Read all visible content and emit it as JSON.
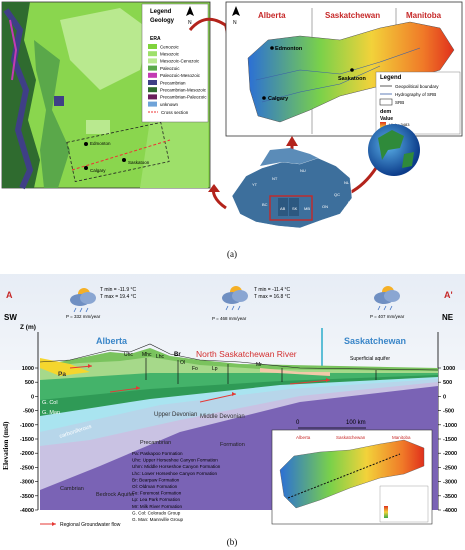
{
  "panel_a": {
    "label": "(a)",
    "geology_legend": {
      "title": "Legend",
      "subtitle": "Geology",
      "era_title": "ERA",
      "items": [
        {
          "label": "Cenozoic",
          "color": "#7fd33c"
        },
        {
          "label": "Mesozoic",
          "color": "#9ee06a"
        },
        {
          "label": "Mesozoic-Cenozoic",
          "color": "#b9e98f"
        },
        {
          "label": "Paleozoic",
          "color": "#5aa84a"
        },
        {
          "label": "Paleozoic-Mesozoic",
          "color": "#c33ab3"
        },
        {
          "label": "Precambrian",
          "color": "#3f3f86"
        },
        {
          "label": "Precambrian-Mesozoic",
          "color": "#2f6b2f"
        },
        {
          "label": "Precambrian-Paleozoic",
          "color": "#6a1f5c"
        },
        {
          "label": "unknown",
          "color": "#6fa3d8"
        }
      ],
      "cross_section_label": "Cross section",
      "cities": [
        "Edmonton",
        "Saskatoon",
        "Calgary"
      ]
    },
    "srb_map": {
      "provinces": [
        "Alberta",
        "Saskatchewan",
        "Manitoba"
      ],
      "cities": [
        "Edmonton",
        "Saskatoon",
        "Calgary"
      ],
      "legend_title": "Legend",
      "legend_items": [
        "Geopolitical boundary",
        "Hydrography of SRB",
        "SRB"
      ],
      "dem_label": "dem",
      "value_label": "Value",
      "high_label": "High : 3483",
      "low_label": "Low : 215"
    },
    "canada_map": {
      "labels": [
        "YT",
        "NT",
        "NU",
        "BC",
        "AB",
        "SK",
        "MB",
        "ON",
        "QC",
        "NL",
        "NB",
        "PE",
        "NS"
      ]
    }
  },
  "panel_b": {
    "label": "(b)",
    "end_left": "A",
    "end_right": "A'",
    "dir_left": "SW",
    "dir_right": "NE",
    "z_label": "Z (m)",
    "y_axis_label": "Elevation (msl)",
    "y_ticks": [
      "1000",
      "500",
      "0",
      "-500",
      "-1000",
      "-1500",
      "-2000",
      "-2500",
      "-3000",
      "-3500",
      "-4000"
    ],
    "right_ticks": [
      "1000",
      "500",
      "0",
      "-500",
      "-1000",
      "-1500",
      "-2000",
      "-2500",
      "-3000",
      "-3500",
      "-4000"
    ],
    "weather": [
      {
        "tmin": "T min = -11.9 °C",
        "tmax": "T max = 19.4 °C",
        "precip": "P = 332 mm/year"
      },
      {
        "tmin": "T min = -11.4 °C",
        "tmax": "T max = 16.8 °C",
        "precip": "P = 468 mm/year"
      },
      {
        "tmin": "",
        "tmax": "",
        "precip": "P = 407 mm/year"
      }
    ],
    "province_left": "Alberta",
    "province_right": "Saskatchewan",
    "river_label": "North Saskatchewan River",
    "formation_tags": [
      "Uhc",
      "Mhc",
      "Lhc",
      "Br",
      "Ol",
      "Fo",
      "Lp",
      "Mr",
      "Pa"
    ],
    "superficial_label": "Superficial aquifer",
    "layer_labels": [
      "G. Col",
      "G. Man",
      "carboniferous",
      "Upper Devonian",
      "Middle Devonian",
      "Precambrian",
      "Formation",
      "Cambrian",
      "Bedrock Aquifer"
    ],
    "key": [
      "Pa: Paskapoo Formation",
      "Uhc: Upper Horseshoe Canyon Formation",
      "Uhm: Middle Horseshoe Canyon Formation",
      "Lhc: Lower Horseshoe Canyon Formation",
      "Br: Bearpaw Formation",
      "Ol: Oldman Formation",
      "Fo: Foremost Formation",
      "Lp: Lea Park Formation",
      "Mr: Milk River Formation",
      "G. Col: Colorado Group",
      "G. Man: Mannville Group"
    ],
    "groundwater_label": "Regional Groundwater flow",
    "scale_zero": "0",
    "scale_label": "100 km",
    "inset_provinces": [
      "Alberta",
      "Saskatchewan",
      "Manitoba"
    ]
  }
}
